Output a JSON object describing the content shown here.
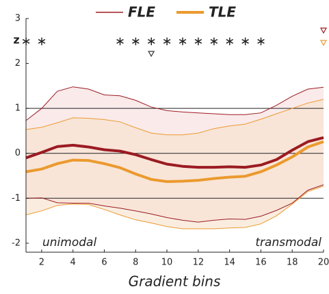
{
  "chart_data": {
    "type": "line",
    "xlabel": "Gradient bins",
    "ylabel": "z",
    "left_annotation": "unimodal",
    "right_annotation": "transmodal",
    "x": [
      1,
      2,
      3,
      4,
      5,
      6,
      7,
      8,
      9,
      10,
      11,
      12,
      13,
      14,
      15,
      16,
      17,
      18,
      19,
      20
    ],
    "xlim": [
      1,
      20
    ],
    "xticks": [
      2,
      4,
      6,
      8,
      10,
      12,
      14,
      16,
      18,
      20
    ],
    "ylim": [
      -2.2,
      3
    ],
    "yticks": [
      -2,
      -1,
      0,
      1,
      2,
      3
    ],
    "reference_lines": [
      -1,
      0,
      1
    ],
    "legend": "top",
    "series": [
      {
        "name": "FLE",
        "color": "#9b1b22",
        "band_color": "#f6dcdc",
        "values": [
          -0.1,
          0.02,
          0.15,
          0.18,
          0.14,
          0.08,
          0.05,
          -0.03,
          -0.14,
          -0.24,
          -0.29,
          -0.31,
          -0.31,
          -0.3,
          -0.31,
          -0.26,
          -0.14,
          0.07,
          0.26,
          0.35
        ],
        "upper": [
          0.73,
          1.0,
          1.38,
          1.48,
          1.43,
          1.3,
          1.28,
          1.18,
          1.03,
          0.95,
          0.92,
          0.9,
          0.88,
          0.86,
          0.86,
          0.9,
          1.07,
          1.27,
          1.43,
          1.47
        ],
        "lower": [
          -1.0,
          -0.99,
          -1.1,
          -1.11,
          -1.11,
          -1.17,
          -1.22,
          -1.28,
          -1.35,
          -1.43,
          -1.49,
          -1.53,
          -1.49,
          -1.46,
          -1.47,
          -1.4,
          -1.27,
          -1.11,
          -0.82,
          -0.7
        ]
      },
      {
        "name": "TLE",
        "color": "#eb9a2e",
        "band_color": "#f7e1cc",
        "values": [
          -0.41,
          -0.35,
          -0.23,
          -0.15,
          -0.16,
          -0.23,
          -0.32,
          -0.46,
          -0.58,
          -0.63,
          -0.62,
          -0.6,
          -0.56,
          -0.53,
          -0.51,
          -0.41,
          -0.26,
          -0.08,
          0.14,
          0.26
        ],
        "upper": [
          0.53,
          0.58,
          0.68,
          0.79,
          0.78,
          0.75,
          0.7,
          0.57,
          0.45,
          0.41,
          0.41,
          0.45,
          0.55,
          0.61,
          0.65,
          0.76,
          0.88,
          1.0,
          1.12,
          1.2
        ],
        "lower": [
          -1.37,
          -1.28,
          -1.16,
          -1.13,
          -1.14,
          -1.25,
          -1.37,
          -1.48,
          -1.55,
          -1.63,
          -1.68,
          -1.68,
          -1.68,
          -1.66,
          -1.65,
          -1.57,
          -1.39,
          -1.13,
          -0.85,
          -0.73
        ]
      }
    ],
    "asterisks": {
      "color": "#eb9a2e",
      "x": [
        1,
        2,
        7,
        8,
        9,
        10,
        11,
        12,
        13,
        14,
        15,
        16
      ]
    },
    "triangles": [
      {
        "x": 9,
        "color": "#333333",
        "row": 2
      },
      {
        "x": 20,
        "color": "#9b1b22",
        "row": 0
      },
      {
        "x": 20,
        "color": "#eb9a2e",
        "row": 1
      }
    ]
  }
}
